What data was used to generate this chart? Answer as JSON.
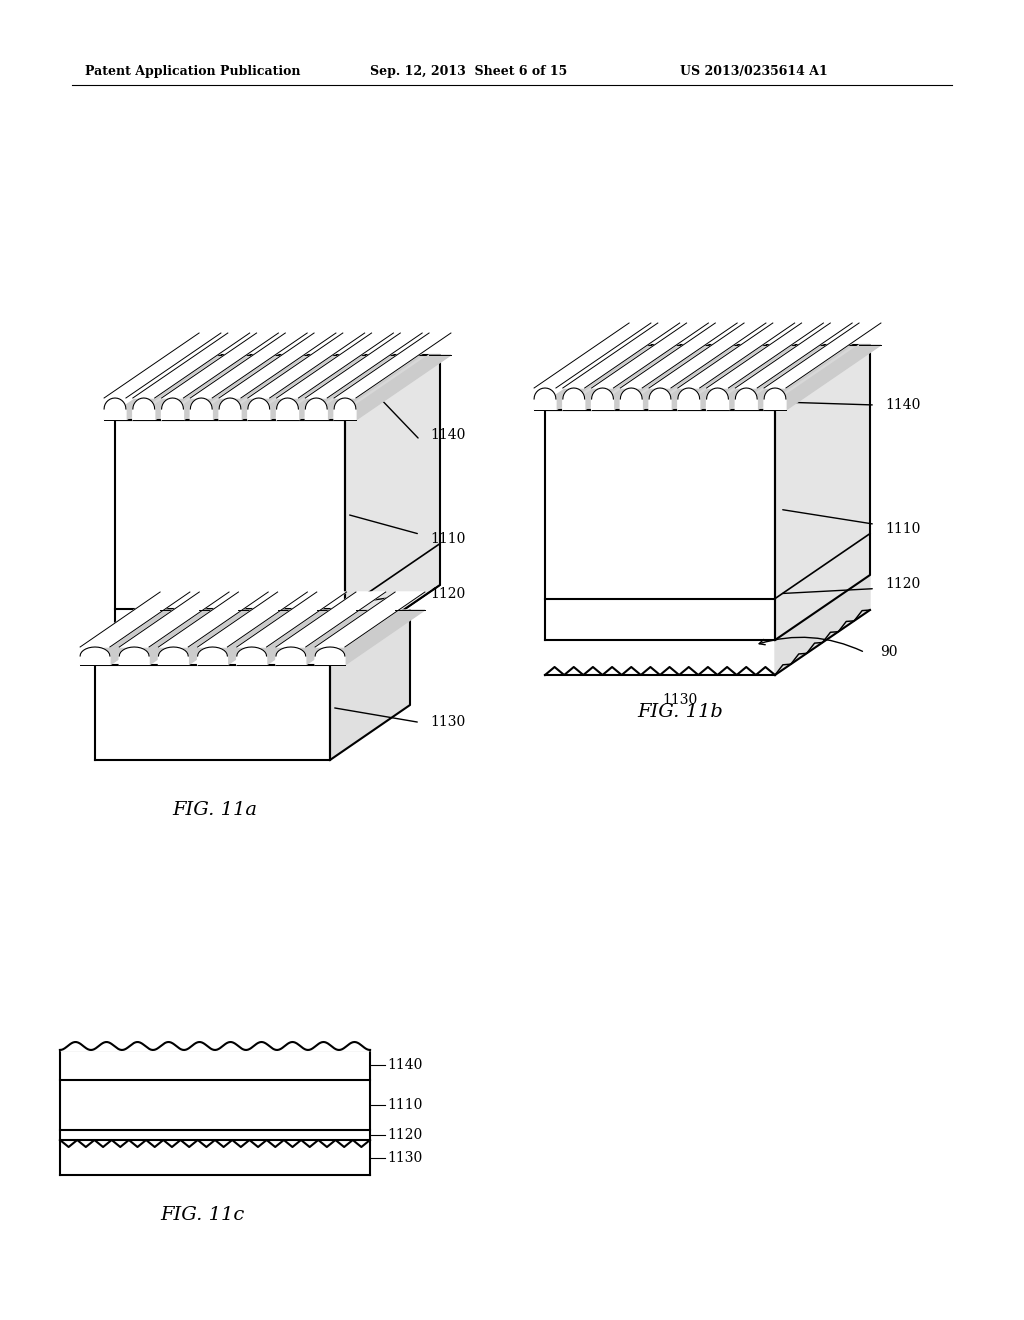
{
  "bg_color": "#ffffff",
  "header_left": "Patent Application Publication",
  "header_mid": "Sep. 12, 2013  Sheet 6 of 15",
  "header_right": "US 2013/0235614 A1",
  "fig11a_label": "FIG. 11a",
  "fig11b_label": "FIG. 11b",
  "fig11c_label": "FIG. 11c",
  "labels_11a": [
    "1140",
    "1110",
    "1120",
    "1130"
  ],
  "labels_11b": [
    "1140",
    "1110",
    "1120",
    "90",
    "1130"
  ],
  "labels_11c": [
    "1140",
    "1110",
    "1120",
    "1130"
  ]
}
